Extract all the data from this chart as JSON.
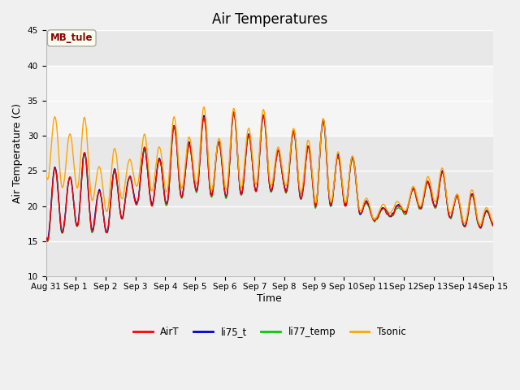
{
  "title": "Air Temperatures",
  "ylabel": "Air Temperature (C)",
  "xlabel": "Time",
  "annotation_text": "MB_tule",
  "annotation_color": "#8B0000",
  "annotation_bg": "#FFFFF0",
  "legend_labels": [
    "AirT",
    "li75_t",
    "li77_temp",
    "Tsonic"
  ],
  "line_colors": [
    "#FF0000",
    "#0000CC",
    "#00CC00",
    "#FFA500"
  ],
  "ylim": [
    10,
    45
  ],
  "yticks": [
    10,
    15,
    20,
    25,
    30,
    35,
    40,
    45
  ],
  "x_ticks_labels": [
    "Aug 31",
    "Sep 1",
    "Sep 2",
    "Sep 3",
    "Sep 4",
    "Sep 5",
    "Sep 6",
    "Sep 7",
    "Sep 8",
    "Sep 9",
    "Sep 10",
    "Sep 11",
    "Sep 12",
    "Sep 13",
    "Sep 14",
    "Sep 15"
  ],
  "title_fontsize": 12,
  "label_fontsize": 9,
  "tick_fontsize": 7.5,
  "fig_bg": "#F0F0F0",
  "ax_bg": "#E8E8E8",
  "grid_color": "#FFFFFF",
  "highlight_band": [
    30,
    40
  ],
  "highlight_color": "#F5F5F5"
}
